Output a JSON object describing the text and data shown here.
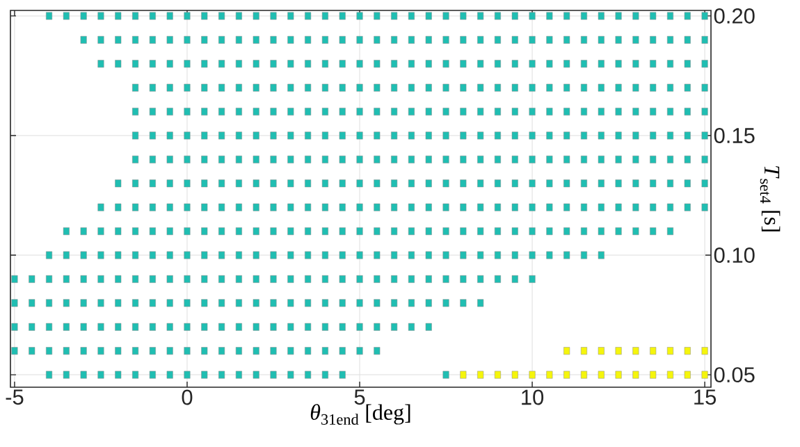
{
  "chart_data": {
    "type": "scatter",
    "xlabel": "*θ*$_{31end}$ [deg]",
    "ylabel": "*T*$_{set4}$ [s]",
    "xlim": [
      -5.12,
      15.18
    ],
    "ylim": [
      0.0448,
      0.2023
    ],
    "xticks": [
      -5,
      0,
      5,
      10,
      15
    ],
    "yticks": [
      {
        "value": 0.05,
        "label": "0.05"
      },
      {
        "value": 0.1,
        "label": "0.10"
      },
      {
        "value": 0.15,
        "label": "0.15"
      },
      {
        "value": 0.2,
        "label": "0.20"
      }
    ],
    "grid": true,
    "marker": "square",
    "series": [
      {
        "color": "#20beb2",
        "x": [
          -4,
          -3.5,
          -3,
          -2.5,
          -2,
          -1.5,
          -1,
          -0.5,
          0,
          0.5,
          1,
          1.5,
          2,
          2.5,
          3,
          3.5,
          4,
          4.5,
          5,
          5.5,
          6,
          6.5,
          7,
          7.5,
          8,
          8.5,
          9,
          9.5,
          10,
          10.5,
          11,
          11.5,
          12,
          12.5,
          13,
          13.5,
          14,
          14.5,
          15
        ],
        "values": [
          0.2,
          0.2,
          0.2,
          0.2,
          0.2,
          0.2,
          0.2,
          0.2,
          0.2,
          0.2,
          0.2,
          0.2,
          0.2,
          0.2,
          0.2,
          0.2,
          0.2,
          0.2,
          0.2,
          0.2,
          0.2,
          0.2,
          0.2,
          0.2,
          0.2,
          0.2,
          0.2,
          0.2,
          0.2,
          0.2,
          0.2,
          0.2,
          0.2,
          0.2,
          0.2,
          0.2,
          0.2,
          0.2,
          0.2
        ]
      },
      {
        "color": "#20beb2",
        "x": [
          -3,
          -2.5,
          -2,
          -1.5,
          -1,
          -0.5,
          0,
          0.5,
          1,
          1.5,
          2,
          2.5,
          3,
          3.5,
          4,
          4.5,
          5,
          5.5,
          6,
          6.5,
          7,
          7.5,
          8,
          8.5,
          9,
          9.5,
          10,
          10.5,
          11,
          11.5,
          12,
          12.5,
          13,
          13.5,
          14,
          14.5,
          15
        ],
        "values": [
          0.19,
          0.19,
          0.19,
          0.19,
          0.19,
          0.19,
          0.19,
          0.19,
          0.19,
          0.19,
          0.19,
          0.19,
          0.19,
          0.19,
          0.19,
          0.19,
          0.19,
          0.19,
          0.19,
          0.19,
          0.19,
          0.19,
          0.19,
          0.19,
          0.19,
          0.19,
          0.19,
          0.19,
          0.19,
          0.19,
          0.19,
          0.19,
          0.19,
          0.19,
          0.19,
          0.19,
          0.19
        ]
      },
      {
        "color": "#20beb2",
        "x": [
          -2.5,
          -2,
          -1.5,
          -1,
          -0.5,
          0,
          0.5,
          1,
          1.5,
          2,
          2.5,
          3,
          3.5,
          4,
          4.5,
          5,
          5.5,
          6,
          6.5,
          7,
          7.5,
          8,
          8.5,
          9,
          9.5,
          10,
          10.5,
          11,
          11.5,
          12,
          12.5,
          13,
          13.5,
          14,
          14.5,
          15
        ],
        "values": [
          0.18,
          0.18,
          0.18,
          0.18,
          0.18,
          0.18,
          0.18,
          0.18,
          0.18,
          0.18,
          0.18,
          0.18,
          0.18,
          0.18,
          0.18,
          0.18,
          0.18,
          0.18,
          0.18,
          0.18,
          0.18,
          0.18,
          0.18,
          0.18,
          0.18,
          0.18,
          0.18,
          0.18,
          0.18,
          0.18,
          0.18,
          0.18,
          0.18,
          0.18,
          0.18,
          0.18
        ]
      },
      {
        "color": "#20beb2",
        "x": [
          -1.5,
          -1,
          -0.5,
          0,
          0.5,
          1,
          1.5,
          2,
          2.5,
          3,
          3.5,
          4,
          4.5,
          5,
          5.5,
          6,
          6.5,
          7,
          7.5,
          8,
          8.5,
          9,
          9.5,
          10,
          10.5,
          11,
          11.5,
          12,
          12.5,
          13,
          13.5,
          14,
          14.5,
          15
        ],
        "values": [
          0.17,
          0.17,
          0.17,
          0.17,
          0.17,
          0.17,
          0.17,
          0.17,
          0.17,
          0.17,
          0.17,
          0.17,
          0.17,
          0.17,
          0.17,
          0.17,
          0.17,
          0.17,
          0.17,
          0.17,
          0.17,
          0.17,
          0.17,
          0.17,
          0.17,
          0.17,
          0.17,
          0.17,
          0.17,
          0.17,
          0.17,
          0.17,
          0.17,
          0.17
        ]
      },
      {
        "color": "#20beb2",
        "x": [
          -1.5,
          -1,
          -0.5,
          0,
          0.5,
          1,
          1.5,
          2,
          2.5,
          3,
          3.5,
          4,
          4.5,
          5,
          5.5,
          6,
          6.5,
          7,
          7.5,
          8,
          8.5,
          9,
          9.5,
          10,
          10.5,
          11,
          11.5,
          12,
          12.5,
          13,
          13.5,
          14,
          14.5,
          15
        ],
        "values": [
          0.16,
          0.16,
          0.16,
          0.16,
          0.16,
          0.16,
          0.16,
          0.16,
          0.16,
          0.16,
          0.16,
          0.16,
          0.16,
          0.16,
          0.16,
          0.16,
          0.16,
          0.16,
          0.16,
          0.16,
          0.16,
          0.16,
          0.16,
          0.16,
          0.16,
          0.16,
          0.16,
          0.16,
          0.16,
          0.16,
          0.16,
          0.16,
          0.16,
          0.16
        ]
      },
      {
        "color": "#20beb2",
        "x": [
          -1.5,
          -1,
          -0.5,
          0,
          0.5,
          1,
          1.5,
          2,
          2.5,
          3,
          3.5,
          4,
          4.5,
          5,
          5.5,
          6,
          6.5,
          7,
          7.5,
          8,
          8.5,
          9,
          9.5,
          10,
          10.5,
          11,
          11.5,
          12,
          12.5,
          13,
          13.5,
          14,
          14.5,
          15
        ],
        "values": [
          0.15,
          0.15,
          0.15,
          0.15,
          0.15,
          0.15,
          0.15,
          0.15,
          0.15,
          0.15,
          0.15,
          0.15,
          0.15,
          0.15,
          0.15,
          0.15,
          0.15,
          0.15,
          0.15,
          0.15,
          0.15,
          0.15,
          0.15,
          0.15,
          0.15,
          0.15,
          0.15,
          0.15,
          0.15,
          0.15,
          0.15,
          0.15,
          0.15,
          0.15
        ]
      },
      {
        "color": "#20beb2",
        "x": [
          -1.5,
          -1,
          -0.5,
          0,
          0.5,
          1,
          1.5,
          2,
          2.5,
          3,
          3.5,
          4,
          4.5,
          5,
          5.5,
          6,
          6.5,
          7,
          7.5,
          8,
          8.5,
          9,
          9.5,
          10,
          10.5,
          11,
          11.5,
          12,
          12.5,
          13,
          13.5,
          14,
          14.5,
          15
        ],
        "values": [
          0.14,
          0.14,
          0.14,
          0.14,
          0.14,
          0.14,
          0.14,
          0.14,
          0.14,
          0.14,
          0.14,
          0.14,
          0.14,
          0.14,
          0.14,
          0.14,
          0.14,
          0.14,
          0.14,
          0.14,
          0.14,
          0.14,
          0.14,
          0.14,
          0.14,
          0.14,
          0.14,
          0.14,
          0.14,
          0.14,
          0.14,
          0.14,
          0.14,
          0.14
        ]
      },
      {
        "color": "#20beb2",
        "x": [
          -2,
          -1.5,
          -1,
          -0.5,
          0,
          0.5,
          1,
          1.5,
          2,
          2.5,
          3,
          3.5,
          4,
          4.5,
          5,
          5.5,
          6,
          6.5,
          7,
          7.5,
          8,
          8.5,
          9,
          9.5,
          10,
          10.5,
          11,
          11.5,
          12,
          12.5,
          13,
          13.5,
          14,
          14.5,
          15
        ],
        "values": [
          0.13,
          0.13,
          0.13,
          0.13,
          0.13,
          0.13,
          0.13,
          0.13,
          0.13,
          0.13,
          0.13,
          0.13,
          0.13,
          0.13,
          0.13,
          0.13,
          0.13,
          0.13,
          0.13,
          0.13,
          0.13,
          0.13,
          0.13,
          0.13,
          0.13,
          0.13,
          0.13,
          0.13,
          0.13,
          0.13,
          0.13,
          0.13,
          0.13,
          0.13,
          0.13
        ]
      },
      {
        "color": "#20beb2",
        "x": [
          -2.5,
          -2,
          -1.5,
          -1,
          -0.5,
          0,
          0.5,
          1,
          1.5,
          2,
          2.5,
          3,
          3.5,
          4,
          4.5,
          5,
          5.5,
          6,
          6.5,
          7,
          7.5,
          8,
          8.5,
          9,
          9.5,
          10,
          10.5,
          11,
          11.5,
          12,
          12.5,
          13,
          13.5,
          14,
          14.5,
          15
        ],
        "values": [
          0.12,
          0.12,
          0.12,
          0.12,
          0.12,
          0.12,
          0.12,
          0.12,
          0.12,
          0.12,
          0.12,
          0.12,
          0.12,
          0.12,
          0.12,
          0.12,
          0.12,
          0.12,
          0.12,
          0.12,
          0.12,
          0.12,
          0.12,
          0.12,
          0.12,
          0.12,
          0.12,
          0.12,
          0.12,
          0.12,
          0.12,
          0.12,
          0.12,
          0.12,
          0.12,
          0.12
        ]
      },
      {
        "color": "#20beb2",
        "x": [
          -3.5,
          -3,
          -2.5,
          -2,
          -1.5,
          -1,
          -0.5,
          0,
          0.5,
          1,
          1.5,
          2,
          2.5,
          3,
          3.5,
          4,
          4.5,
          5,
          5.5,
          6,
          6.5,
          7,
          7.5,
          8,
          8.5,
          9,
          9.5,
          10,
          10.5,
          11,
          11.5,
          12,
          12.5,
          13,
          13.5,
          14
        ],
        "values": [
          0.11,
          0.11,
          0.11,
          0.11,
          0.11,
          0.11,
          0.11,
          0.11,
          0.11,
          0.11,
          0.11,
          0.11,
          0.11,
          0.11,
          0.11,
          0.11,
          0.11,
          0.11,
          0.11,
          0.11,
          0.11,
          0.11,
          0.11,
          0.11,
          0.11,
          0.11,
          0.11,
          0.11,
          0.11,
          0.11,
          0.11,
          0.11,
          0.11,
          0.11,
          0.11,
          0.11
        ]
      },
      {
        "color": "#20beb2",
        "x": [
          -4,
          -3.5,
          -3,
          -2.5,
          -2,
          -1.5,
          -1,
          -0.5,
          0,
          0.5,
          1,
          1.5,
          2,
          2.5,
          3,
          3.5,
          4,
          4.5,
          5,
          5.5,
          6,
          6.5,
          7,
          7.5,
          8,
          8.5,
          9,
          9.5,
          10,
          10.5,
          11,
          11.5,
          12
        ],
        "values": [
          0.1,
          0.1,
          0.1,
          0.1,
          0.1,
          0.1,
          0.1,
          0.1,
          0.1,
          0.1,
          0.1,
          0.1,
          0.1,
          0.1,
          0.1,
          0.1,
          0.1,
          0.1,
          0.1,
          0.1,
          0.1,
          0.1,
          0.1,
          0.1,
          0.1,
          0.1,
          0.1,
          0.1,
          0.1,
          0.1,
          0.1,
          0.1,
          0.1
        ]
      },
      {
        "color": "#20beb2",
        "x": [
          -5,
          -4.5,
          -4,
          -3.5,
          -3,
          -2.5,
          -2,
          -1.5,
          -1,
          -0.5,
          0,
          0.5,
          1,
          1.5,
          2,
          2.5,
          3,
          3.5,
          4,
          4.5,
          5,
          5.5,
          6,
          6.5,
          7,
          7.5,
          8,
          8.5,
          9,
          9.5,
          10
        ],
        "values": [
          0.09,
          0.09,
          0.09,
          0.09,
          0.09,
          0.09,
          0.09,
          0.09,
          0.09,
          0.09,
          0.09,
          0.09,
          0.09,
          0.09,
          0.09,
          0.09,
          0.09,
          0.09,
          0.09,
          0.09,
          0.09,
          0.09,
          0.09,
          0.09,
          0.09,
          0.09,
          0.09,
          0.09,
          0.09,
          0.09,
          0.09
        ]
      },
      {
        "color": "#20beb2",
        "x": [
          -5,
          -4.5,
          -4,
          -3.5,
          -3,
          -2.5,
          -2,
          -1.5,
          -1,
          -0.5,
          0,
          0.5,
          1,
          1.5,
          2,
          2.5,
          3,
          3.5,
          4,
          4.5,
          5,
          5.5,
          6,
          6.5,
          7,
          7.5,
          8,
          8.5
        ],
        "values": [
          0.08,
          0.08,
          0.08,
          0.08,
          0.08,
          0.08,
          0.08,
          0.08,
          0.08,
          0.08,
          0.08,
          0.08,
          0.08,
          0.08,
          0.08,
          0.08,
          0.08,
          0.08,
          0.08,
          0.08,
          0.08,
          0.08,
          0.08,
          0.08,
          0.08,
          0.08,
          0.08,
          0.08
        ]
      },
      {
        "color": "#20beb2",
        "x": [
          -5,
          -4.5,
          -4,
          -3.5,
          -3,
          -2.5,
          -2,
          -1.5,
          -1,
          -0.5,
          0,
          0.5,
          1,
          1.5,
          2,
          2.5,
          3,
          3.5,
          4,
          4.5,
          5,
          5.5,
          6,
          6.5,
          7
        ],
        "values": [
          0.07,
          0.07,
          0.07,
          0.07,
          0.07,
          0.07,
          0.07,
          0.07,
          0.07,
          0.07,
          0.07,
          0.07,
          0.07,
          0.07,
          0.07,
          0.07,
          0.07,
          0.07,
          0.07,
          0.07,
          0.07,
          0.07,
          0.07,
          0.07,
          0.07
        ]
      },
      {
        "color": "#20beb2",
        "x": [
          -5,
          -4.5,
          -4,
          -3.5,
          -3,
          -2.5,
          -2,
          -1.5,
          -1,
          -0.5,
          0,
          0.5,
          1,
          1.5,
          2,
          2.5,
          3,
          3.5,
          4,
          4.5,
          5,
          5.5
        ],
        "values": [
          0.06,
          0.06,
          0.06,
          0.06,
          0.06,
          0.06,
          0.06,
          0.06,
          0.06,
          0.06,
          0.06,
          0.06,
          0.06,
          0.06,
          0.06,
          0.06,
          0.06,
          0.06,
          0.06,
          0.06,
          0.06,
          0.06
        ]
      },
      {
        "color": "#20beb2",
        "x": [
          -4,
          -3.5,
          -3,
          -2.5,
          -2,
          -1.5,
          -1,
          -0.5,
          0,
          0.5,
          1,
          1.5,
          2,
          2.5,
          3,
          3.5,
          4,
          4.5,
          7.5
        ],
        "values": [
          0.05,
          0.05,
          0.05,
          0.05,
          0.05,
          0.05,
          0.05,
          0.05,
          0.05,
          0.05,
          0.05,
          0.05,
          0.05,
          0.05,
          0.05,
          0.05,
          0.05,
          0.05,
          0.05
        ]
      },
      {
        "color": "#f5f50c",
        "x": [
          11,
          11.5,
          12,
          12.5,
          13,
          13.5,
          14,
          14.5,
          15
        ],
        "values": [
          0.06,
          0.06,
          0.06,
          0.06,
          0.06,
          0.06,
          0.06,
          0.06,
          0.06
        ]
      },
      {
        "color": "#f5f50c",
        "x": [
          8,
          8.5,
          9,
          9.5,
          10,
          10.5,
          11,
          11.5,
          12,
          12.5,
          13,
          13.5,
          14,
          14.5,
          15
        ],
        "values": [
          0.05,
          0.05,
          0.05,
          0.05,
          0.05,
          0.05,
          0.05,
          0.05,
          0.05,
          0.05,
          0.05,
          0.05,
          0.05,
          0.05,
          0.05
        ]
      }
    ]
  }
}
